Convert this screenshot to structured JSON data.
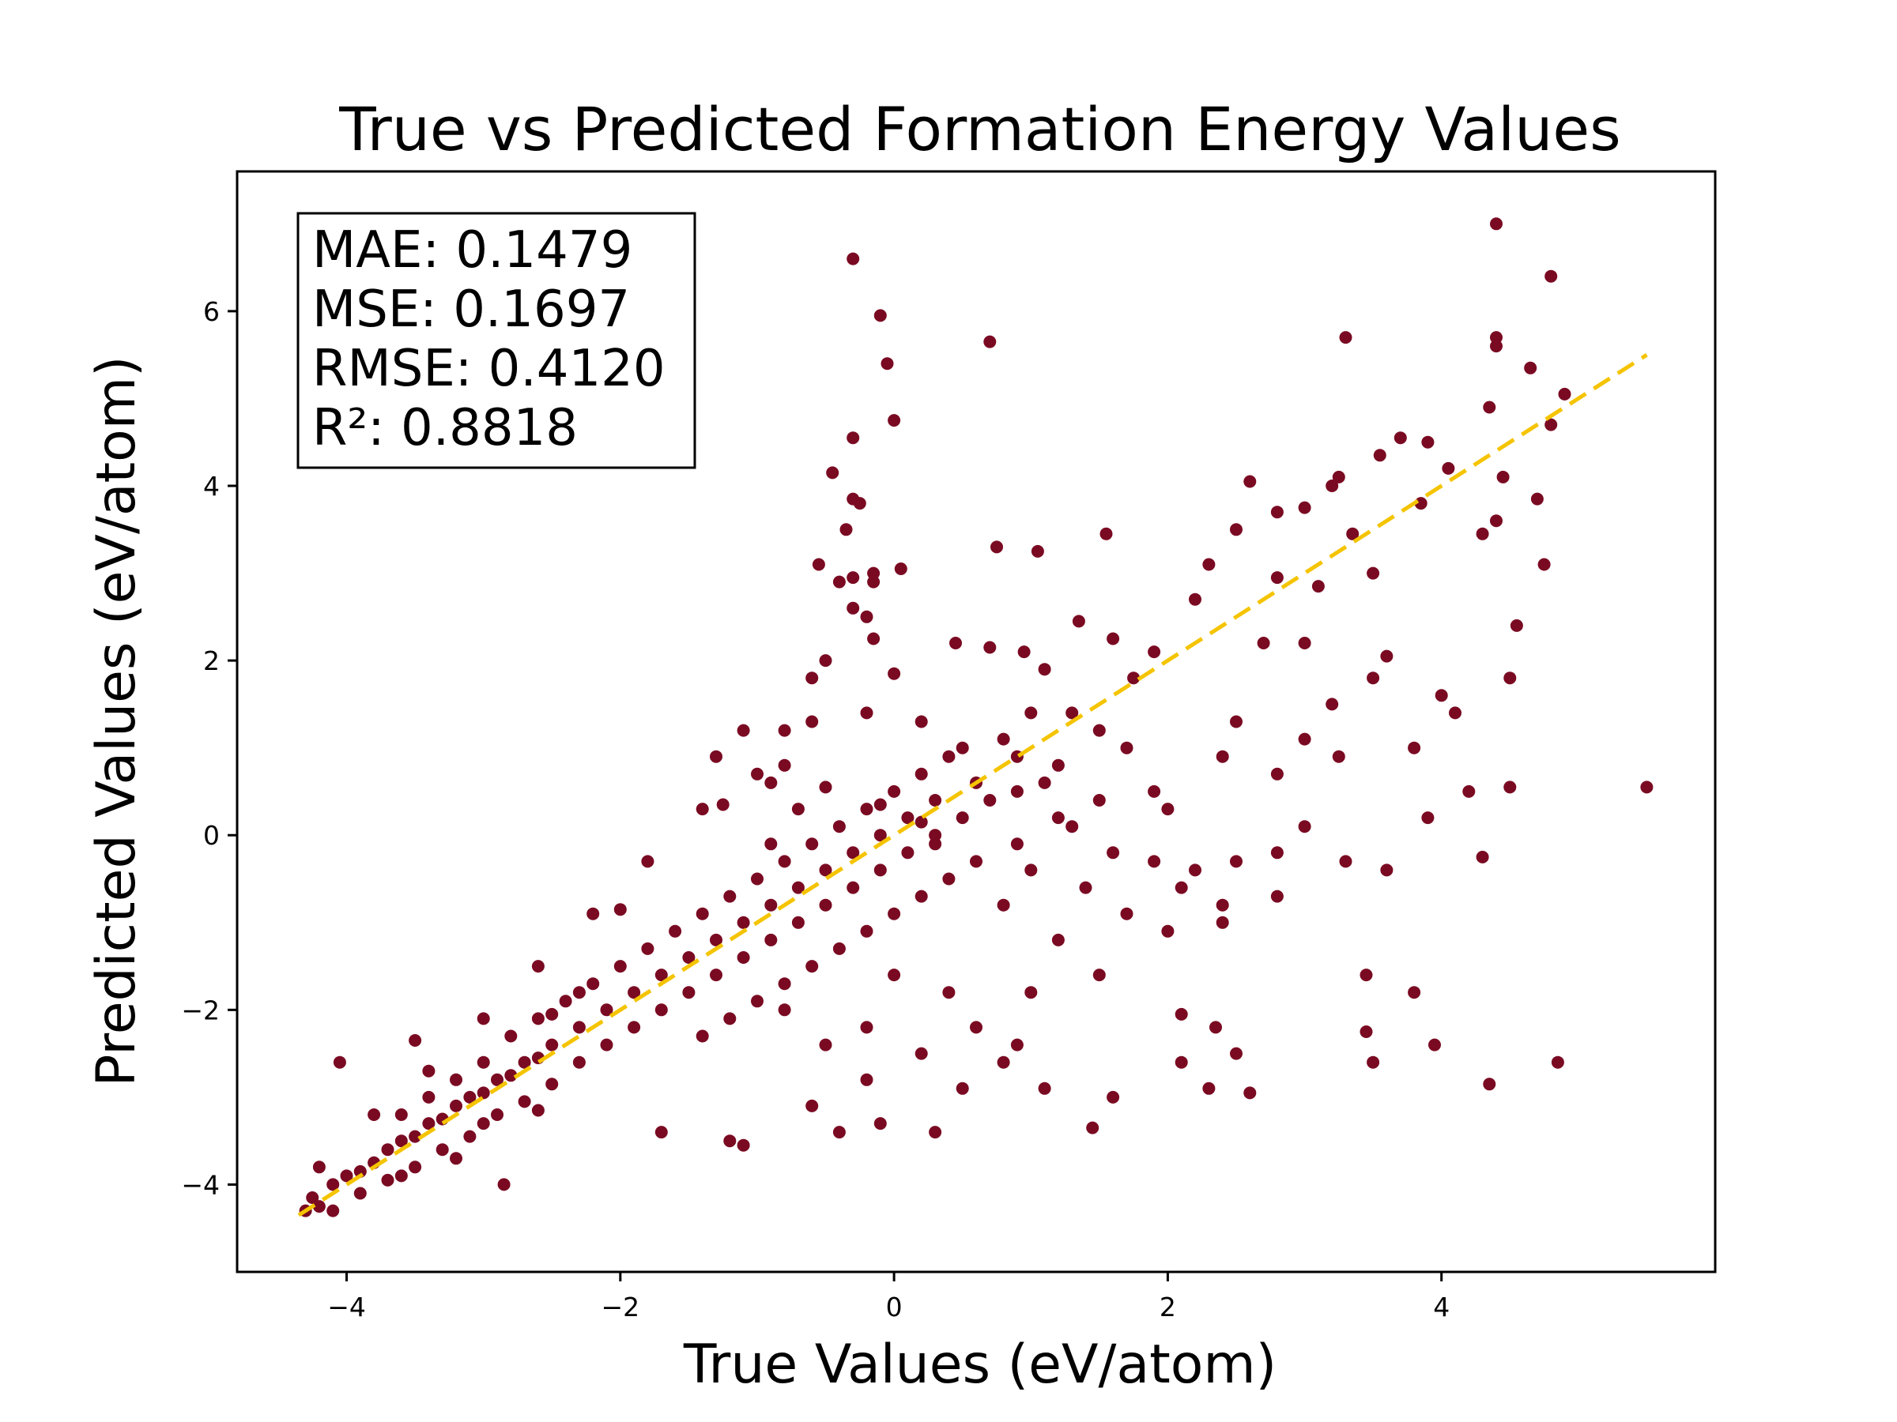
{
  "chart_data": {
    "type": "scatter",
    "title": "True vs Predicted Formation Energy Values",
    "xlabel": "True Values (eV/atom)",
    "ylabel": "Predicted Values (eV/atom)",
    "xlim": [
      -4.8,
      6.0
    ],
    "ylim": [
      -5.0,
      7.6
    ],
    "xticks": [
      -4,
      -2,
      0,
      2,
      4
    ],
    "yticks": [
      -4,
      -2,
      0,
      2,
      4,
      6
    ],
    "xtick_labels": [
      "−4",
      "−2",
      "0",
      "2",
      "4"
    ],
    "ytick_labels": [
      "−4",
      "−2",
      "0",
      "2",
      "4",
      "6"
    ],
    "grid": false,
    "marker_color": "#7a0a22",
    "reference_line": {
      "x": [
        -4.35,
        5.5
      ],
      "y": [
        -4.35,
        5.5
      ],
      "color": "#f5c400",
      "style": "dashed"
    },
    "metrics": [
      "MAE: 0.1479",
      "MSE: 0.1697",
      "RMSE: 0.4120",
      "R²: 0.8818"
    ],
    "points": [
      [
        -4.3,
        -4.3
      ],
      [
        -4.25,
        -4.15
      ],
      [
        -4.2,
        -4.25
      ],
      [
        -4.1,
        -4.0
      ],
      [
        -4.0,
        -3.9
      ],
      [
        -3.9,
        -3.85
      ],
      [
        -3.8,
        -3.75
      ],
      [
        -3.7,
        -3.6
      ],
      [
        -3.6,
        -3.5
      ],
      [
        -3.5,
        -3.45
      ],
      [
        -3.4,
        -3.3
      ],
      [
        -3.3,
        -3.25
      ],
      [
        -3.2,
        -3.1
      ],
      [
        -3.1,
        -3.0
      ],
      [
        -3.0,
        -2.95
      ],
      [
        -2.9,
        -2.8
      ],
      [
        -2.8,
        -2.75
      ],
      [
        -2.7,
        -2.6
      ],
      [
        -2.6,
        -2.55
      ],
      [
        -2.5,
        -2.4
      ],
      [
        -4.05,
        -2.6
      ],
      [
        -3.5,
        -2.35
      ],
      [
        -3.6,
        -3.9
      ],
      [
        -3.2,
        -3.7
      ],
      [
        -2.85,
        -4.0
      ],
      [
        -3.0,
        -3.3
      ],
      [
        -2.6,
        -3.15
      ],
      [
        -2.5,
        -2.05
      ],
      [
        -2.3,
        -1.8
      ],
      [
        -2.0,
        -0.85
      ],
      [
        -1.7,
        -3.4
      ],
      [
        -1.2,
        -3.5
      ],
      [
        -1.1,
        -3.55
      ],
      [
        -0.4,
        -3.4
      ],
      [
        -0.1,
        -3.3
      ],
      [
        0.3,
        -3.4
      ],
      [
        -0.6,
        -3.1
      ],
      [
        -0.2,
        -2.2
      ],
      [
        -1.25,
        0.35
      ],
      [
        -0.9,
        -0.1
      ],
      [
        -0.8,
        1.2
      ],
      [
        -0.6,
        1.8
      ],
      [
        -0.5,
        2.0
      ],
      [
        -0.55,
        3.1
      ],
      [
        -0.4,
        2.9
      ],
      [
        -0.35,
        3.5
      ],
      [
        -0.3,
        4.55
      ],
      [
        -0.45,
        4.15
      ],
      [
        -0.3,
        3.85
      ],
      [
        -0.25,
        3.8
      ],
      [
        -0.15,
        3.0
      ],
      [
        -0.3,
        2.95
      ],
      [
        -0.15,
        2.9
      ],
      [
        0.05,
        3.05
      ],
      [
        -0.2,
        2.5
      ],
      [
        0.0,
        1.85
      ],
      [
        -0.15,
        2.25
      ],
      [
        -0.3,
        6.6
      ],
      [
        -0.1,
        5.95
      ],
      [
        -0.05,
        5.4
      ],
      [
        0.0,
        4.75
      ],
      [
        -0.3,
        2.6
      ],
      [
        0.7,
        5.65
      ],
      [
        0.75,
        3.3
      ],
      [
        1.05,
        3.25
      ],
      [
        1.55,
        3.45
      ],
      [
        0.45,
        2.2
      ],
      [
        0.7,
        2.15
      ],
      [
        0.95,
        2.1
      ],
      [
        1.35,
        2.45
      ],
      [
        1.6,
        2.25
      ],
      [
        1.1,
        1.9
      ],
      [
        1.3,
        1.4
      ],
      [
        1.5,
        1.2
      ],
      [
        1.7,
        1.0
      ],
      [
        1.2,
        0.8
      ],
      [
        0.9,
        0.9
      ],
      [
        0.6,
        0.6
      ],
      [
        0.3,
        0.4
      ],
      [
        0.1,
        0.2
      ],
      [
        -0.1,
        0.0
      ],
      [
        -0.3,
        -0.2
      ],
      [
        -0.5,
        -0.4
      ],
      [
        -0.7,
        -0.6
      ],
      [
        -0.9,
        -0.8
      ],
      [
        -1.1,
        -1.0
      ],
      [
        -1.3,
        -1.2
      ],
      [
        -1.5,
        -1.4
      ],
      [
        -1.7,
        -1.6
      ],
      [
        -1.9,
        -1.8
      ],
      [
        -2.1,
        -2.0
      ],
      [
        -2.3,
        -2.2
      ],
      [
        1.3,
        0.1
      ],
      [
        1.6,
        -0.2
      ],
      [
        1.9,
        -0.3
      ],
      [
        2.2,
        -0.4
      ],
      [
        2.5,
        -0.3
      ],
      [
        2.8,
        -0.2
      ],
      [
        3.0,
        0.1
      ],
      [
        3.3,
        -0.3
      ],
      [
        3.6,
        -0.4
      ],
      [
        3.9,
        0.2
      ],
      [
        4.2,
        0.5
      ],
      [
        4.3,
        -0.25
      ],
      [
        4.5,
        0.55
      ],
      [
        5.5,
        0.55
      ],
      [
        2.8,
        -0.7
      ],
      [
        2.4,
        -0.8
      ],
      [
        2.0,
        -1.1
      ],
      [
        1.5,
        -1.6
      ],
      [
        1.0,
        -1.8
      ],
      [
        0.8,
        -2.6
      ],
      [
        1.1,
        -2.9
      ],
      [
        1.6,
        -3.0
      ],
      [
        1.45,
        -3.35
      ],
      [
        2.1,
        -2.6
      ],
      [
        2.3,
        -2.9
      ],
      [
        2.6,
        -2.95
      ],
      [
        2.5,
        -2.5
      ],
      [
        2.1,
        -2.05
      ],
      [
        2.35,
        -2.2
      ],
      [
        3.45,
        -1.6
      ],
      [
        3.45,
        -2.25
      ],
      [
        3.5,
        -2.6
      ],
      [
        3.8,
        -1.8
      ],
      [
        3.95,
        -2.4
      ],
      [
        4.35,
        -2.85
      ],
      [
        4.85,
        -2.6
      ],
      [
        2.0,
        0.3
      ],
      [
        2.4,
        0.9
      ],
      [
        2.5,
        1.3
      ],
      [
        2.8,
        0.7
      ],
      [
        3.0,
        1.1
      ],
      [
        3.2,
        1.5
      ],
      [
        3.25,
        0.9
      ],
      [
        3.5,
        1.8
      ],
      [
        3.8,
        1.0
      ],
      [
        4.0,
        1.6
      ],
      [
        4.1,
        1.4
      ],
      [
        4.5,
        1.8
      ],
      [
        4.55,
        2.4
      ],
      [
        4.75,
        3.1
      ],
      [
        4.7,
        3.85
      ],
      [
        4.45,
        4.1
      ],
      [
        4.4,
        3.6
      ],
      [
        4.3,
        3.45
      ],
      [
        4.05,
        4.2
      ],
      [
        3.9,
        4.5
      ],
      [
        3.7,
        4.55
      ],
      [
        3.55,
        4.35
      ],
      [
        3.2,
        4.0
      ],
      [
        3.25,
        4.1
      ],
      [
        3.0,
        3.75
      ],
      [
        2.8,
        3.7
      ],
      [
        2.6,
        4.05
      ],
      [
        2.5,
        3.5
      ],
      [
        2.3,
        3.1
      ],
      [
        2.2,
        2.7
      ],
      [
        2.8,
        2.95
      ],
      [
        3.1,
        2.85
      ],
      [
        3.35,
        3.45
      ],
      [
        3.5,
        3.0
      ],
      [
        3.6,
        2.05
      ],
      [
        3.85,
        3.8
      ],
      [
        4.35,
        4.9
      ],
      [
        4.4,
        5.6
      ],
      [
        4.4,
        5.7
      ],
      [
        4.65,
        5.35
      ],
      [
        4.8,
        4.7
      ],
      [
        4.9,
        5.05
      ],
      [
        4.4,
        7.0
      ],
      [
        4.8,
        6.4
      ],
      [
        3.3,
        5.7
      ],
      [
        3.0,
        2.2
      ],
      [
        2.7,
        2.2
      ],
      [
        1.9,
        2.1
      ],
      [
        1.75,
        1.8
      ],
      [
        1.0,
        1.4
      ],
      [
        0.8,
        1.1
      ],
      [
        0.5,
        1.0
      ],
      [
        0.2,
        1.3
      ],
      [
        -0.2,
        1.4
      ],
      [
        -0.6,
        1.3
      ],
      [
        -1.0,
        0.7
      ],
      [
        -1.4,
        0.3
      ],
      [
        -1.8,
        -0.3
      ],
      [
        -2.2,
        -0.9
      ],
      [
        -2.6,
        -1.5
      ],
      [
        -3.0,
        -2.1
      ],
      [
        -3.4,
        -2.7
      ],
      [
        -3.8,
        -3.2
      ],
      [
        -4.2,
        -3.8
      ],
      [
        -4.1,
        -4.3
      ],
      [
        -3.9,
        -4.1
      ],
      [
        -3.7,
        -3.95
      ],
      [
        -3.5,
        -3.8
      ],
      [
        -3.3,
        -3.6
      ],
      [
        -3.1,
        -3.45
      ],
      [
        -2.9,
        -3.2
      ],
      [
        -2.7,
        -3.05
      ],
      [
        -2.5,
        -2.85
      ],
      [
        -2.3,
        -2.6
      ],
      [
        -2.1,
        -2.4
      ],
      [
        -1.9,
        -2.2
      ],
      [
        -1.7,
        -2.0
      ],
      [
        -1.5,
        -1.8
      ],
      [
        -1.3,
        -1.6
      ],
      [
        -1.1,
        -1.4
      ],
      [
        -0.9,
        -1.2
      ],
      [
        -0.7,
        -1.0
      ],
      [
        -0.5,
        -0.8
      ],
      [
        -0.3,
        -0.6
      ],
      [
        -0.1,
        -0.4
      ],
      [
        0.1,
        -0.2
      ],
      [
        0.3,
        0.0
      ],
      [
        0.5,
        0.2
      ],
      [
        0.7,
        0.4
      ],
      [
        0.9,
        0.5
      ],
      [
        1.1,
        0.6
      ],
      [
        -1.6,
        -1.1
      ],
      [
        -1.4,
        -0.9
      ],
      [
        -1.2,
        -0.7
      ],
      [
        -1.0,
        -0.5
      ],
      [
        -0.8,
        -0.3
      ],
      [
        -0.6,
        -0.1
      ],
      [
        -0.4,
        0.1
      ],
      [
        -0.2,
        0.3
      ],
      [
        0.0,
        0.5
      ],
      [
        0.2,
        0.7
      ],
      [
        0.4,
        0.9
      ],
      [
        -2.4,
        -1.9
      ],
      [
        -2.2,
        -1.7
      ],
      [
        -2.0,
        -1.5
      ],
      [
        -1.8,
        -1.3
      ],
      [
        -2.8,
        -2.3
      ],
      [
        -2.6,
        -2.1
      ],
      [
        -3.2,
        -2.8
      ],
      [
        -3.0,
        -2.6
      ],
      [
        -3.6,
        -3.2
      ],
      [
        -3.4,
        -3.0
      ],
      [
        -1.0,
        -1.9
      ],
      [
        -0.8,
        -1.7
      ],
      [
        -0.6,
        -1.5
      ],
      [
        -0.4,
        -1.3
      ],
      [
        -0.2,
        -1.1
      ],
      [
        0.0,
        -0.9
      ],
      [
        0.2,
        -0.7
      ],
      [
        0.4,
        -0.5
      ],
      [
        -1.4,
        -2.3
      ],
      [
        -1.2,
        -2.1
      ],
      [
        -0.5,
        -2.4
      ],
      [
        0.0,
        -1.6
      ],
      [
        0.4,
        -1.8
      ],
      [
        0.6,
        -2.2
      ],
      [
        0.2,
        -2.5
      ],
      [
        -0.8,
        -2.0
      ],
      [
        -0.2,
        -2.8
      ],
      [
        0.5,
        -2.9
      ],
      [
        0.9,
        -2.4
      ],
      [
        1.2,
        -1.2
      ],
      [
        0.8,
        -0.8
      ],
      [
        1.0,
        -0.4
      ],
      [
        1.4,
        -0.6
      ],
      [
        1.7,
        -0.9
      ],
      [
        2.1,
        -0.6
      ],
      [
        2.4,
        -1.0
      ],
      [
        1.9,
        0.5
      ],
      [
        1.5,
        0.4
      ],
      [
        1.2,
        0.2
      ],
      [
        0.9,
        -0.1
      ],
      [
        0.6,
        -0.3
      ],
      [
        0.3,
        -0.1
      ],
      [
        0.2,
        0.15
      ],
      [
        -0.1,
        0.35
      ],
      [
        -0.5,
        0.55
      ],
      [
        -0.9,
        0.6
      ],
      [
        -1.3,
        0.9
      ],
      [
        -1.1,
        1.2
      ],
      [
        -0.8,
        0.8
      ],
      [
        -0.7,
        0.3
      ]
    ]
  }
}
